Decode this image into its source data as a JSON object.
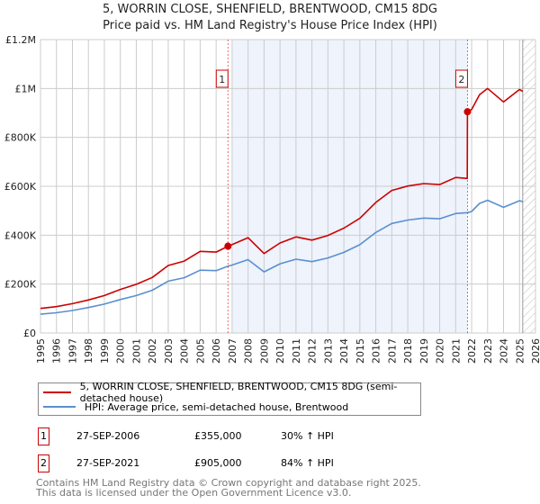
{
  "title": "5, WORRIN CLOSE, SHENFIELD, BRENTWOOD, CM15 8DG",
  "subtitle": "Price paid vs. HM Land Registry's House Price Index (HPI)",
  "colors": {
    "property": "#cc0000",
    "hpi": "#5b8fd0",
    "shade": "#eef3fc",
    "grid": "#cccccc"
  },
  "chart_data": {
    "type": "line",
    "title": "5, WORRIN CLOSE, SHENFIELD, BRENTWOOD, CM15 8DG",
    "xlabel": "",
    "ylabel": "",
    "xlim": [
      1995,
      2026
    ],
    "ylim": [
      0,
      1200000
    ],
    "x_ticks": [
      "1995",
      "1996",
      "1997",
      "1998",
      "1999",
      "2000",
      "2001",
      "2002",
      "2003",
      "2004",
      "2005",
      "2006",
      "2007",
      "2008",
      "2009",
      "2010",
      "2011",
      "2012",
      "2013",
      "2014",
      "2015",
      "2016",
      "2017",
      "2018",
      "2019",
      "2020",
      "2021",
      "2022",
      "2023",
      "2024",
      "2025",
      "2026"
    ],
    "y_ticks": [
      {
        "value": 0,
        "label": "£0"
      },
      {
        "value": 200000,
        "label": "£200K"
      },
      {
        "value": 400000,
        "label": "£400K"
      },
      {
        "value": 600000,
        "label": "£600K"
      },
      {
        "value": 800000,
        "label": "£800K"
      },
      {
        "value": 1000000,
        "label": "£1M"
      },
      {
        "value": 1200000,
        "label": "£1.2M"
      }
    ],
    "grid": true,
    "shaded_period": [
      2007,
      2021.74
    ],
    "forecast_hatch_from": 2025.2,
    "series": [
      {
        "name": "5, WORRIN CLOSE, SHENFIELD, BRENTWOOD, CM15 8DG (semi-detached house)",
        "x": [
          1995,
          1996,
          1997,
          1998,
          1999,
          2000,
          2001,
          2002,
          2003,
          2004,
          2005,
          2006,
          2006.74,
          2007,
          2008,
          2009,
          2010,
          2011,
          2012,
          2013,
          2014,
          2015,
          2016,
          2017,
          2018,
          2019,
          2020,
          2021,
          2021.73,
          2021.74,
          2022,
          2022.5,
          2023,
          2024,
          2025,
          2025.2
        ],
        "values": [
          100600,
          108000,
          120000,
          135000,
          153000,
          178000,
          199000,
          227000,
          276000,
          294000,
          334000,
          331000,
          355000,
          362000,
          390000,
          325000,
          368000,
          393000,
          380000,
          399000,
          429000,
          469000,
          534000,
          583000,
          601000,
          611000,
          607000,
          636000,
          632000,
          905000,
          914000,
          975000,
          1000000,
          945000,
          996000,
          988000
        ]
      },
      {
        "name": "HPI: Average price, semi-detached house, Brentwood",
        "x": [
          1995,
          1996,
          1997,
          1998,
          1999,
          2000,
          2001,
          2002,
          2003,
          2004,
          2005,
          2006,
          2006.74,
          2007,
          2008,
          2009,
          2010,
          2011,
          2012,
          2013,
          2014,
          2015,
          2016,
          2017,
          2018,
          2019,
          2020,
          2021,
          2021.74,
          2022,
          2022.5,
          2023,
          2024,
          2025,
          2025.2
        ],
        "values": [
          77000,
          83000,
          92000,
          104000,
          118000,
          137000,
          153000,
          175000,
          212000,
          226000,
          257000,
          255000,
          273000,
          278000,
          300000,
          250000,
          283000,
          302000,
          292000,
          307000,
          330000,
          361000,
          411000,
          448000,
          462000,
          470000,
          467000,
          489000,
          492000,
          497000,
          530000,
          543000,
          514000,
          541000,
          537000
        ]
      }
    ],
    "annotations": [
      {
        "label": "1",
        "x": 2006.74,
        "value": 355000
      },
      {
        "label": "2",
        "x": 2021.74,
        "value": 905000
      }
    ]
  },
  "legend": {
    "property": "5, WORRIN CLOSE, SHENFIELD, BRENTWOOD, CM15 8DG (semi-detached house)",
    "hpi": "HPI: Average price, semi-detached house, Brentwood"
  },
  "sales": [
    {
      "num": "1",
      "date": "27-SEP-2006",
      "price": "£355,000",
      "change": "30% ↑ HPI"
    },
    {
      "num": "2",
      "date": "27-SEP-2021",
      "price": "£905,000",
      "change": "84% ↑ HPI"
    }
  ],
  "footer": {
    "line1": "Contains HM Land Registry data © Crown copyright and database right 2025.",
    "line2": "This data is licensed under the Open Government Licence v3.0."
  }
}
